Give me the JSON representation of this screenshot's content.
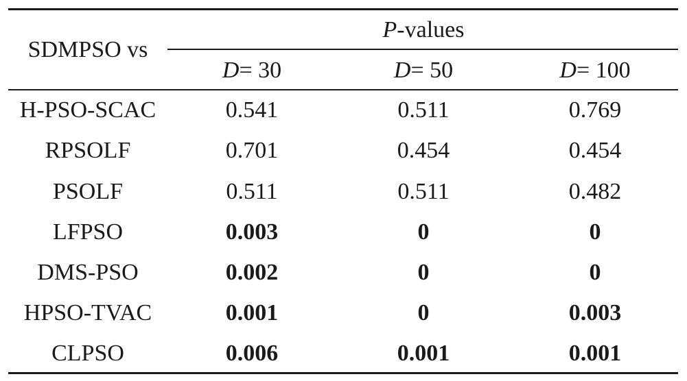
{
  "table": {
    "row_header": "SDMPSO vs",
    "group_header": {
      "italic_part": "P",
      "rest": "-values"
    },
    "columns": [
      {
        "var": "D",
        "value": "= 30"
      },
      {
        "var": "D",
        "value": "= 50"
      },
      {
        "var": "D",
        "value": "= 100"
      }
    ],
    "rows": [
      {
        "name": "H-PSO-SCAC",
        "cells": [
          {
            "v": "0.541",
            "bold": false
          },
          {
            "v": "0.511",
            "bold": false
          },
          {
            "v": "0.769",
            "bold": false
          }
        ]
      },
      {
        "name": "RPSOLF",
        "cells": [
          {
            "v": "0.701",
            "bold": false
          },
          {
            "v": "0.454",
            "bold": false
          },
          {
            "v": "0.454",
            "bold": false
          }
        ]
      },
      {
        "name": "PSOLF",
        "cells": [
          {
            "v": "0.511",
            "bold": false
          },
          {
            "v": "0.511",
            "bold": false
          },
          {
            "v": "0.482",
            "bold": false
          }
        ]
      },
      {
        "name": "LFPSO",
        "cells": [
          {
            "v": "0.003",
            "bold": true
          },
          {
            "v": "0",
            "bold": true
          },
          {
            "v": "0",
            "bold": true
          }
        ]
      },
      {
        "name": "DMS-PSO",
        "cells": [
          {
            "v": "0.002",
            "bold": true
          },
          {
            "v": "0",
            "bold": true
          },
          {
            "v": "0",
            "bold": true
          }
        ]
      },
      {
        "name": "HPSO-TVAC",
        "cells": [
          {
            "v": "0.001",
            "bold": true
          },
          {
            "v": "0",
            "bold": true
          },
          {
            "v": "0.003",
            "bold": true
          }
        ]
      },
      {
        "name": "CLPSO",
        "cells": [
          {
            "v": "0.006",
            "bold": true
          },
          {
            "v": "0.001",
            "bold": true
          },
          {
            "v": "0.001",
            "bold": true
          }
        ]
      }
    ]
  }
}
